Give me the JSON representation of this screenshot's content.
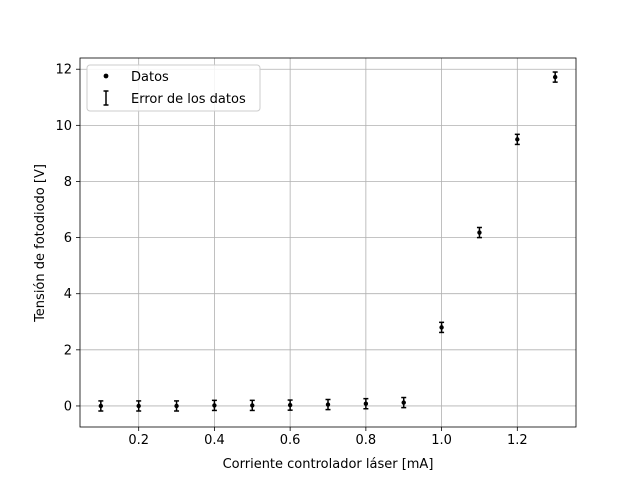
{
  "chart_data": {
    "type": "scatter",
    "title": "",
    "xlabel": "Corriente controlador láser [mA]",
    "ylabel": "Tensión de fotodiodo [V]",
    "xlim": [
      0.045,
      1.355
    ],
    "ylim": [
      -0.75,
      12.4
    ],
    "xticks": [
      0.2,
      0.4,
      0.6,
      0.8,
      1.0,
      1.2
    ],
    "xtick_labels": [
      "0.2",
      "0.4",
      "0.6",
      "0.8",
      "1.0",
      "1.2"
    ],
    "yticks": [
      0,
      2,
      4,
      6,
      8,
      10,
      12
    ],
    "ytick_labels": [
      "0",
      "2",
      "4",
      "6",
      "8",
      "10",
      "12"
    ],
    "grid": true,
    "legend_position": "top-left",
    "series": [
      {
        "name": "Datos",
        "error_name": "Error de los datos",
        "color": "#000000",
        "x": [
          0.1,
          0.2,
          0.3,
          0.4,
          0.5,
          0.6,
          0.7,
          0.8,
          0.9,
          1.0,
          1.1,
          1.2,
          1.3
        ],
        "y": [
          0.0,
          0.0,
          0.0,
          0.02,
          0.02,
          0.03,
          0.05,
          0.08,
          0.12,
          2.8,
          6.18,
          9.5,
          11.72
        ],
        "yerr": [
          0.18,
          0.18,
          0.18,
          0.18,
          0.18,
          0.18,
          0.18,
          0.18,
          0.18,
          0.18,
          0.18,
          0.18,
          0.18
        ]
      }
    ]
  }
}
